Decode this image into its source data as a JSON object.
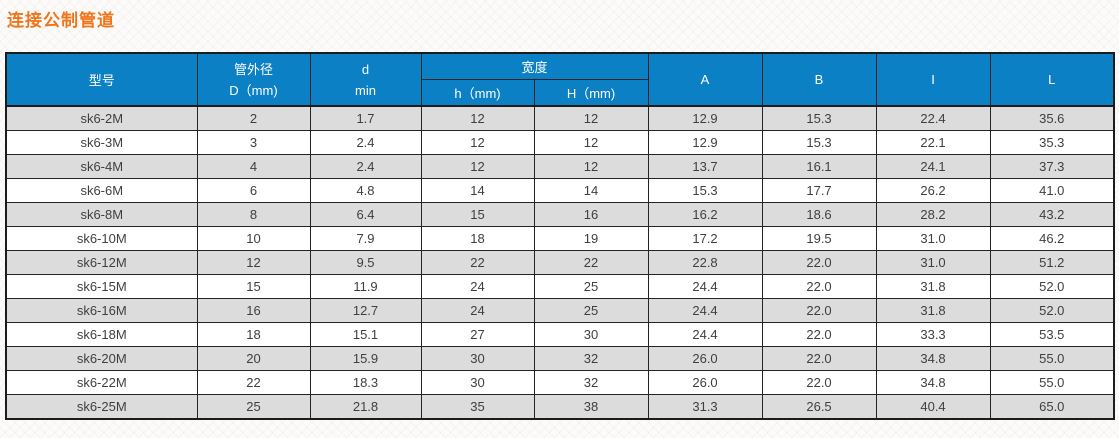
{
  "page": {
    "title": "连接公制管道"
  },
  "colors": {
    "title_orange": "#f0751a",
    "header_blue": "#0c80c4",
    "row_alt_gray": "#dcdcdc",
    "row_white": "#ffffff",
    "border_dark": "#1c1c1c",
    "body_text": "#3f3f3f"
  },
  "table": {
    "headers": {
      "model": "型号",
      "outer_diameter_line1": "管外径",
      "outer_diameter_line2": "D（mm)",
      "d_line1": "d",
      "d_line2": "min",
      "width_group": "宽度",
      "h_small": "h（mm)",
      "h_large": "H（mm)",
      "col_a": "A",
      "col_b": "B",
      "col_i": "I",
      "col_l": "L"
    },
    "rows": [
      [
        "sk6-2M",
        "2",
        "1.7",
        "12",
        "12",
        "12.9",
        "15.3",
        "22.4",
        "35.6"
      ],
      [
        "sk6-3M",
        "3",
        "2.4",
        "12",
        "12",
        "12.9",
        "15.3",
        "22.1",
        "35.3"
      ],
      [
        "sk6-4M",
        "4",
        "2.4",
        "12",
        "12",
        "13.7",
        "16.1",
        "24.1",
        "37.3"
      ],
      [
        "sk6-6M",
        "6",
        "4.8",
        "14",
        "14",
        "15.3",
        "17.7",
        "26.2",
        "41.0"
      ],
      [
        "sk6-8M",
        "8",
        "6.4",
        "15",
        "16",
        "16.2",
        "18.6",
        "28.2",
        "43.2"
      ],
      [
        "sk6-10M",
        "10",
        "7.9",
        "18",
        "19",
        "17.2",
        "19.5",
        "31.0",
        "46.2"
      ],
      [
        "sk6-12M",
        "12",
        "9.5",
        "22",
        "22",
        "22.8",
        "22.0",
        "31.0",
        "51.2"
      ],
      [
        "sk6-15M",
        "15",
        "11.9",
        "24",
        "25",
        "24.4",
        "22.0",
        "31.8",
        "52.0"
      ],
      [
        "sk6-16M",
        "16",
        "12.7",
        "24",
        "25",
        "24.4",
        "22.0",
        "31.8",
        "52.0"
      ],
      [
        "sk6-18M",
        "18",
        "15.1",
        "27",
        "30",
        "24.4",
        "22.0",
        "33.3",
        "53.5"
      ],
      [
        "sk6-20M",
        "20",
        "15.9",
        "30",
        "32",
        "26.0",
        "22.0",
        "34.8",
        "55.0"
      ],
      [
        "sk6-22M",
        "22",
        "18.3",
        "30",
        "32",
        "26.0",
        "22.0",
        "34.8",
        "55.0"
      ],
      [
        "sk6-25M",
        "25",
        "21.8",
        "35",
        "38",
        "31.3",
        "26.5",
        "40.4",
        "65.0"
      ]
    ]
  }
}
